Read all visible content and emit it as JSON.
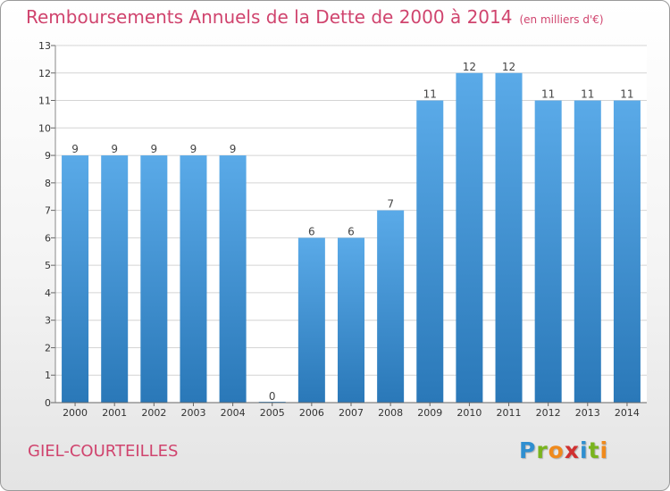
{
  "title": "Remboursements Annuels de la Dette de 2000 à 2014",
  "subtitle": "(en milliers d'€)",
  "commune": "GIEL-COURTEILLES",
  "logo": {
    "letters": [
      "P",
      "r",
      "o",
      "x",
      "i",
      "t",
      "i"
    ],
    "colors": [
      "#2f8fd0",
      "#79b41d",
      "#f08a1c",
      "#d03030",
      "#2f8fd0",
      "#79b41d",
      "#f08a1c"
    ]
  },
  "colors": {
    "bar_top": "#5aaae8",
    "bar_bottom": "#2a78b8",
    "accent": "#d0446e",
    "grid": "#d4d4d4"
  },
  "chart_data": {
    "type": "bar",
    "title": "Remboursements Annuels de la Dette de 2000 à 2014",
    "subtitle": "(en milliers d'€)",
    "categories": [
      "2000",
      "2001",
      "2002",
      "2003",
      "2004",
      "2005",
      "2006",
      "2007",
      "2008",
      "2009",
      "2010",
      "2011",
      "2012",
      "2013",
      "2014"
    ],
    "values": [
      9,
      9,
      9,
      9,
      9,
      0,
      6,
      6,
      7,
      11,
      12,
      12,
      11,
      11,
      11
    ],
    "xlabel": "",
    "ylabel": "",
    "ylim": [
      0,
      13
    ],
    "yticks": [
      0,
      1,
      2,
      3,
      4,
      5,
      6,
      7,
      8,
      9,
      10,
      11,
      12,
      13
    ],
    "grid": true
  }
}
